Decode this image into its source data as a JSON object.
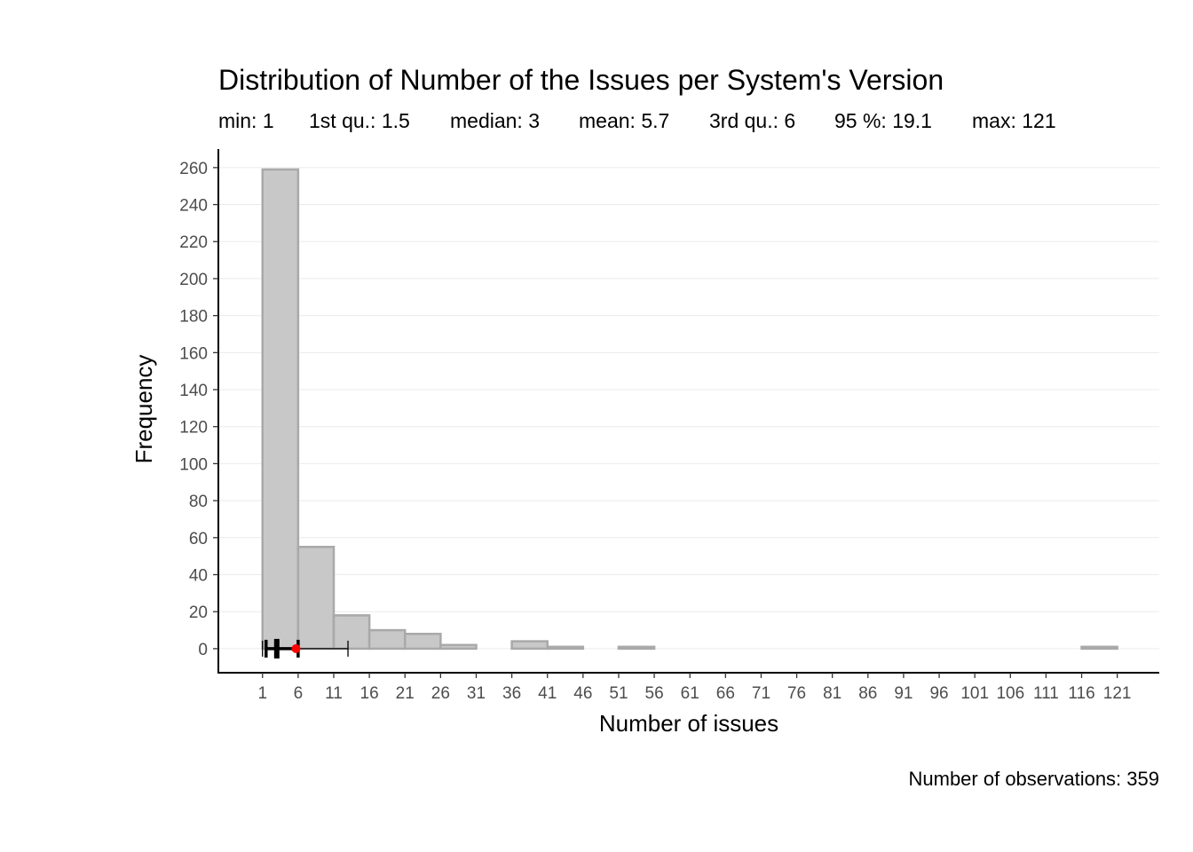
{
  "chart_data": {
    "type": "bar",
    "title": "Distribution of Number of the Issues per System's Version",
    "subtitle": {
      "min": "min: 1",
      "q1": "1st qu.: 1.5",
      "median": "median: 3",
      "mean": "mean: 5.7",
      "q3": "3rd qu.: 6",
      "p95": "95 %: 19.1",
      "max": "max: 121"
    },
    "xlabel": "Number of issues",
    "ylabel": "Frequency",
    "caption": "Number of observations: 359",
    "bin_width": 5,
    "bin_starts": [
      1,
      6,
      11,
      16,
      21,
      26,
      31,
      36,
      41,
      46,
      51,
      56,
      61,
      66,
      71,
      76,
      81,
      86,
      91,
      96,
      101,
      106,
      111,
      116
    ],
    "values": [
      259,
      55,
      18,
      10,
      8,
      2,
      0,
      4,
      1,
      0,
      1,
      0,
      0,
      0,
      0,
      0,
      0,
      0,
      0,
      0,
      0,
      0,
      0,
      1
    ],
    "x_ticks": [
      "1",
      "6",
      "11",
      "16",
      "21",
      "26",
      "31",
      "36",
      "41",
      "46",
      "51",
      "56",
      "61",
      "66",
      "71",
      "76",
      "81",
      "86",
      "91",
      "96",
      "101",
      "106",
      "111",
      "116",
      "121"
    ],
    "y_ticks": [
      0,
      20,
      40,
      60,
      80,
      100,
      120,
      140,
      160,
      180,
      200,
      220,
      240,
      260
    ],
    "xlim": [
      -5.2,
      126.9
    ],
    "ylim": [
      -13,
      270
    ],
    "summary_box": {
      "min": 1,
      "q1": 1.5,
      "median": 3,
      "mean": 5.7,
      "q3": 6,
      "whisker_high": 13,
      "whisker_low": 1
    },
    "grid": "horizontal",
    "colors": {
      "bar_fill": "#c8c8c8",
      "bar_stroke": "#a9a9a9",
      "mean_point": "#ff0000",
      "grid": "#ebebeb",
      "axis": "#000000"
    }
  }
}
